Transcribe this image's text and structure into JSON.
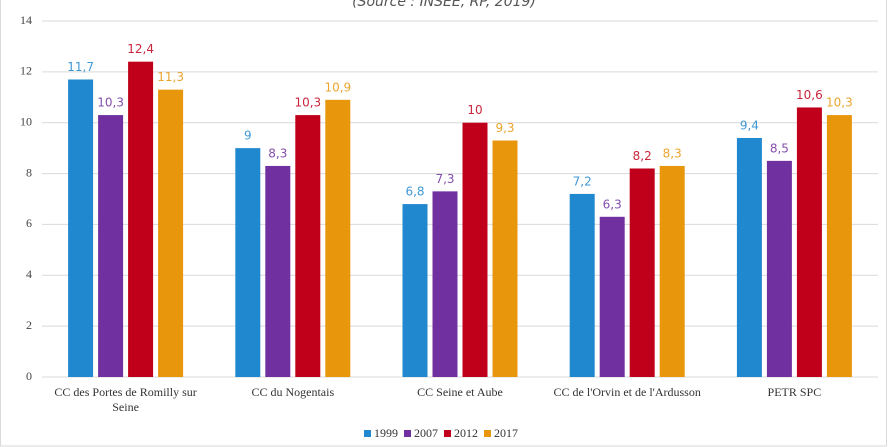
{
  "chart_data": {
    "type": "bar",
    "subtitle": "(Source : INSEE, RP, 2019)",
    "categories": [
      "CC des Portes de Romilly sur Seine",
      "CC du Nogentais",
      "CC Seine et Aube",
      "CC de l'Orvin et de l'Ardusson",
      "PETR SPC"
    ],
    "series": [
      {
        "name": "1999",
        "color": "#1f88cf",
        "values": [
          11.7,
          9,
          6.8,
          7.2,
          9.4
        ],
        "value_labels": [
          "11,7",
          "9",
          "6,8",
          "7,2",
          "9,4"
        ]
      },
      {
        "name": "2007",
        "color": "#7030a0",
        "values": [
          10.3,
          8.3,
          7.3,
          6.3,
          8.5
        ],
        "value_labels": [
          "10,3",
          "8,3",
          "7,3",
          "6,3",
          "8,5"
        ]
      },
      {
        "name": "2012",
        "color": "#c0001a",
        "values": [
          12.4,
          10.3,
          10,
          8.2,
          10.6
        ],
        "value_labels": [
          "12,4",
          "10,3",
          "10",
          "8,2",
          "10,6"
        ]
      },
      {
        "name": "2017",
        "color": "#e8960c",
        "values": [
          11.3,
          10.9,
          9.3,
          8.3,
          10.3
        ],
        "value_labels": [
          "11,3",
          "10,9",
          "9,3",
          "8,3",
          "10,3"
        ]
      }
    ],
    "ylim": [
      0,
      14
    ],
    "yticks": [
      0,
      2,
      4,
      6,
      8,
      10,
      12,
      14
    ],
    "grid": true,
    "legend": "bottom"
  }
}
